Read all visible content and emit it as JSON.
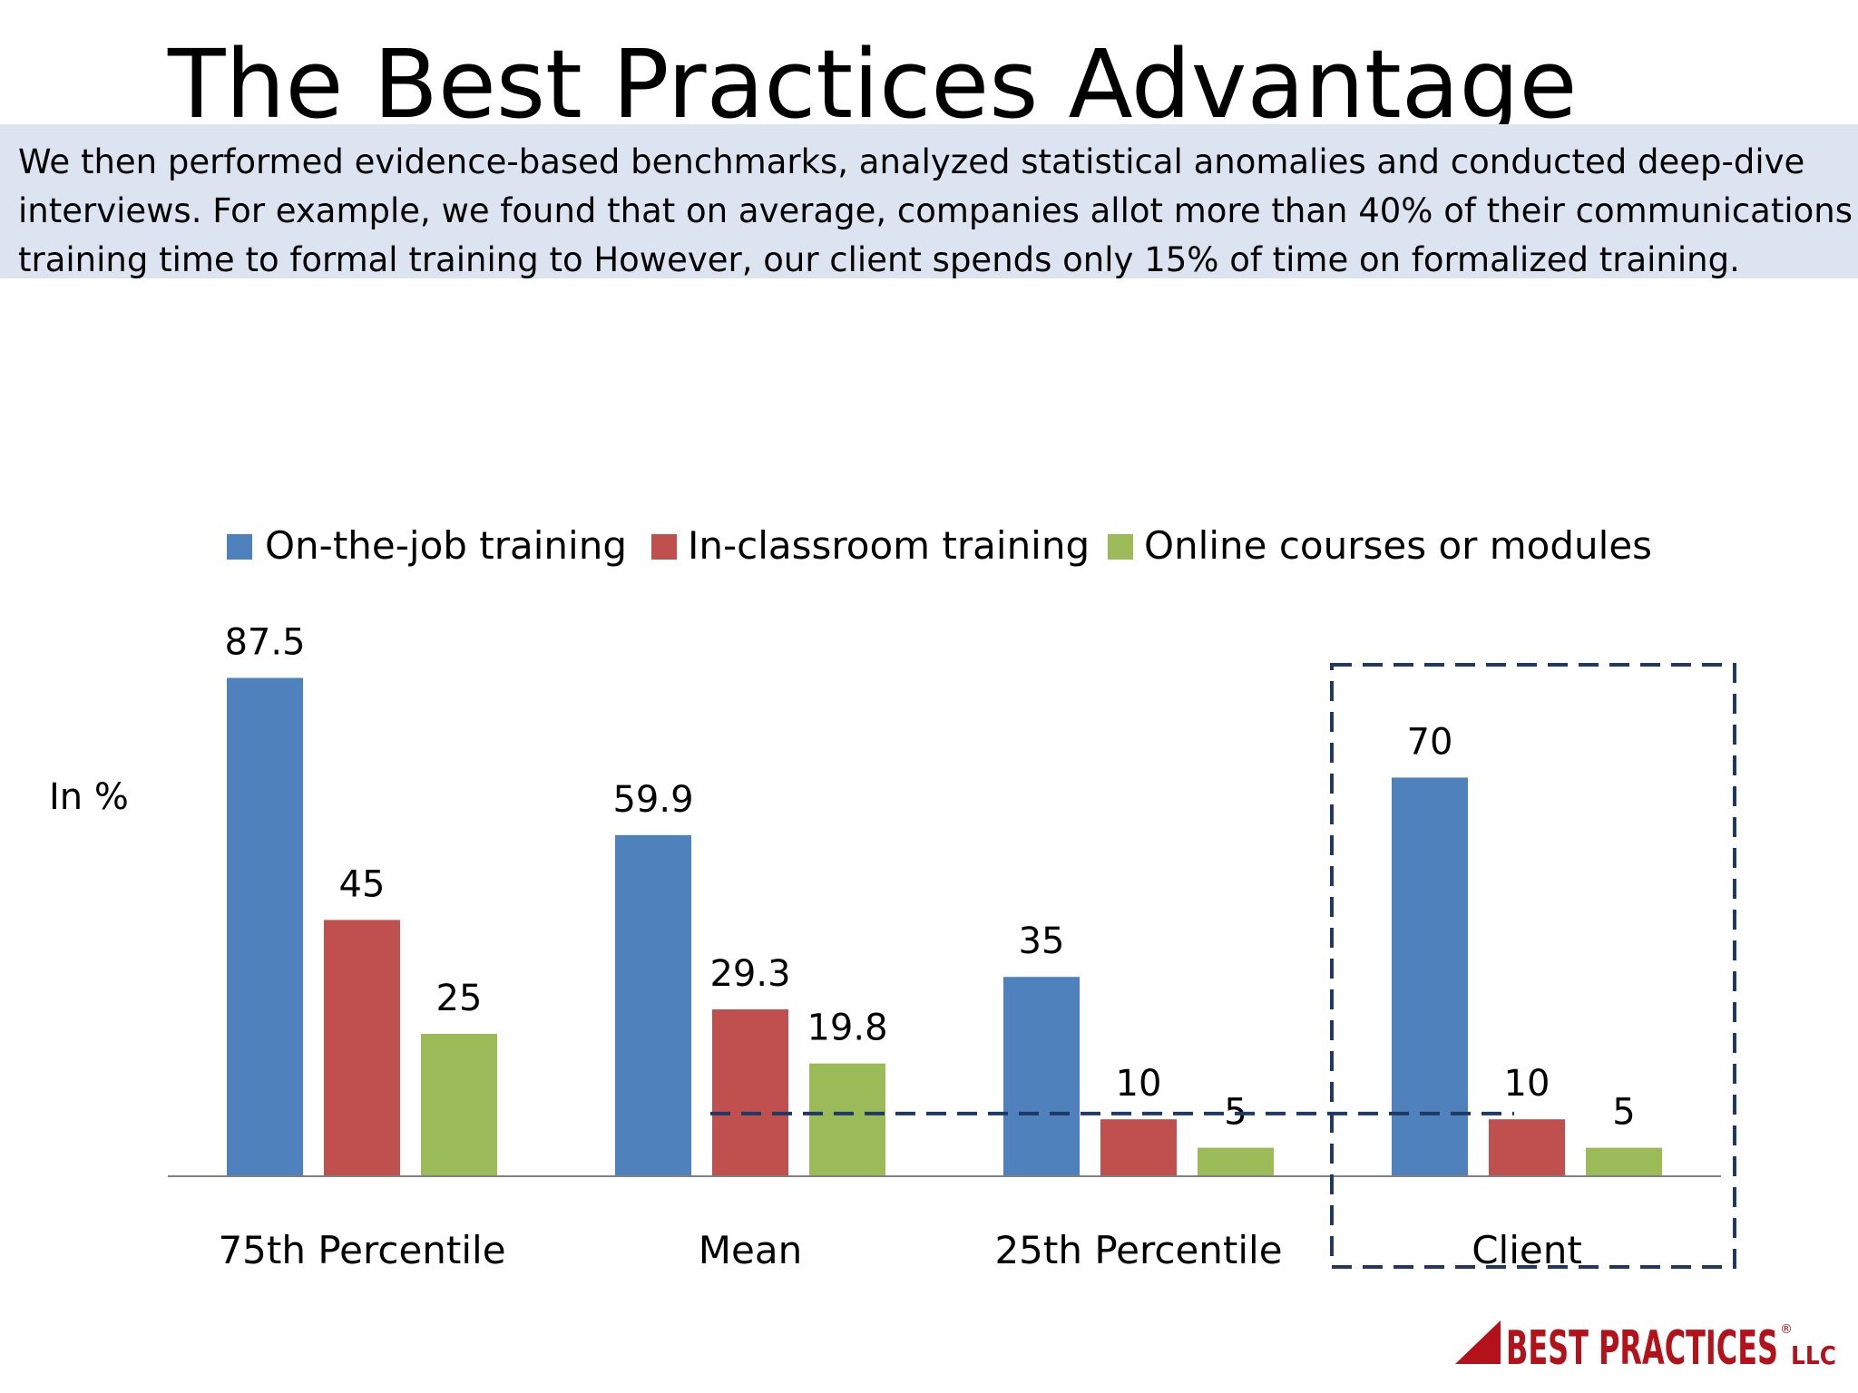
{
  "slide": {
    "title": "The Best Practices Advantage",
    "intro_lines": [
      "We then performed evidence-based benchmarks,  analyzed statistical anomalies and conducted deep-dive",
      "interviews. For example, we found that on average, companies allot more than 40% of their communications",
      "training time to formal training to However, our client  spends only 15% of time on formalized training."
    ]
  },
  "chart_data": {
    "type": "bar",
    "title": "",
    "xlabel": "",
    "ylabel": "In %",
    "ylim": [
      0,
      100
    ],
    "grid": false,
    "legend_position": "top",
    "categories": [
      "75th Percentile",
      "Mean",
      "25th Percentile",
      "Client"
    ],
    "series": [
      {
        "name": "On-the-job training",
        "color": "#4f81bd",
        "values": [
          87.5,
          59.9,
          35,
          70
        ]
      },
      {
        "name": "In-classroom training",
        "color": "#c0504d",
        "values": [
          45,
          29.3,
          10,
          10
        ]
      },
      {
        "name": "Online courses or modules",
        "color": "#9bbb59",
        "values": [
          25,
          19.8,
          5,
          5
        ]
      }
    ],
    "data_labels": [
      [
        "87.5",
        "59.9",
        "35",
        "70"
      ],
      [
        "45",
        "29.3",
        "10",
        "10"
      ],
      [
        "25",
        "19.8",
        "5",
        "5"
      ]
    ],
    "annotations": [
      {
        "kind": "dashed-reference-line",
        "value": 11,
        "from_category": "Mean",
        "to_category": "Client",
        "color": "#1f3864"
      },
      {
        "kind": "dashed-highlight-box",
        "category": "Client",
        "color": "#1f3864"
      }
    ]
  },
  "logo": {
    "text": "BEST PRACTICES",
    "registered": "®",
    "suffix": "LLC",
    "color": "#b4121b"
  }
}
